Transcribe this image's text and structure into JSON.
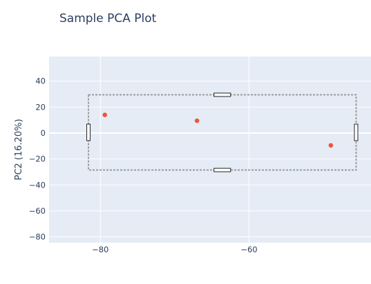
{
  "chart_data": {
    "type": "scatter",
    "title": "Sample PCA Plot",
    "xlabel": "",
    "ylabel": "PC2 (16.20%)",
    "xlim": [
      -86.9,
      -43.6
    ],
    "ylim": [
      -84.5,
      59
    ],
    "x_ticks": [
      -80,
      -60
    ],
    "y_ticks": [
      40,
      20,
      0,
      -20,
      -40,
      -60,
      -80
    ],
    "grid": true,
    "legend": "none",
    "points": [
      {
        "x": -79.4,
        "y": 14
      },
      {
        "x": -67.0,
        "y": 9.5
      },
      {
        "x": -49.0,
        "y": -9.5
      }
    ],
    "selection_box": {
      "x0": -81.6,
      "x1": -45.6,
      "y0": -28.5,
      "y1": 29.5
    },
    "colors": {
      "plot_bg": "#E5ECF6",
      "grid": "#FFFFFF",
      "marker": "#EF553B",
      "text": "#2a3f5f",
      "selection": "#9a9a9a"
    }
  }
}
